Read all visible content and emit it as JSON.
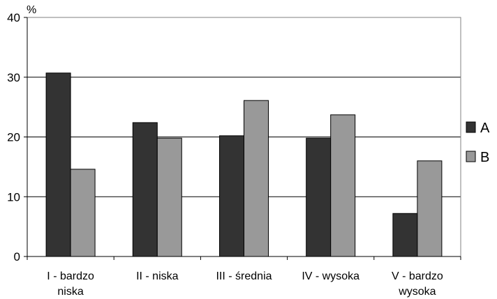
{
  "chart_data": {
    "type": "bar",
    "ylabel": "%",
    "ylim": [
      0,
      40
    ],
    "yticks": [
      0,
      10,
      20,
      30,
      40
    ],
    "grid": true,
    "legend_position": "right",
    "categories": [
      [
        "I - bardzo",
        "niska"
      ],
      [
        "II - niska"
      ],
      [
        "III - średnia"
      ],
      [
        "IV - wysoka"
      ],
      [
        "V - bardzo",
        "wysoka"
      ]
    ],
    "series": [
      {
        "name": "A",
        "color": "#333333",
        "values": [
          30.7,
          22.4,
          20.2,
          19.8,
          7.2
        ]
      },
      {
        "name": "B",
        "color": "#999999",
        "values": [
          14.6,
          19.8,
          26.1,
          23.7,
          16.0
        ]
      }
    ]
  }
}
